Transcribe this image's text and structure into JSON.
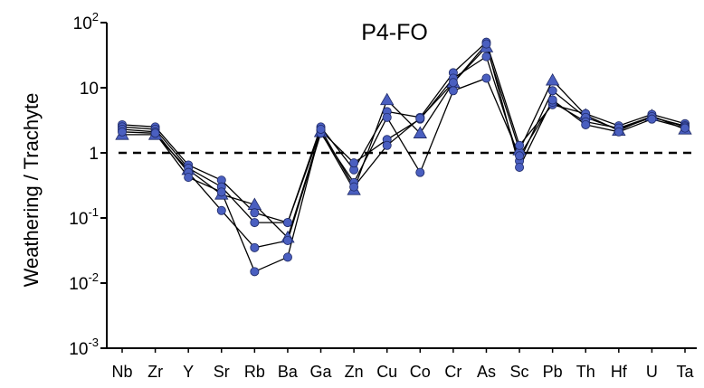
{
  "chart_data": {
    "type": "line",
    "title": "P4-FO",
    "ylabel": "Weathering / Trachyte",
    "xlabel": "",
    "yscale": "log",
    "ylim": [
      0.001,
      100
    ],
    "yticks": [
      {
        "value": 100,
        "base": "10",
        "exp": "2"
      },
      {
        "value": 10,
        "base": "10",
        "exp": ""
      },
      {
        "value": 1,
        "base": "1",
        "exp": ""
      },
      {
        "value": 0.1,
        "base": "10",
        "exp": "-1"
      },
      {
        "value": 0.01,
        "base": "10",
        "exp": "-2"
      },
      {
        "value": 0.001,
        "base": "10",
        "exp": "-3"
      }
    ],
    "reference_line": {
      "value": 1,
      "style": "dashed"
    },
    "grid": false,
    "legend": "none",
    "categories": [
      "Nb",
      "Zr",
      "Y",
      "Sr",
      "Rb",
      "Ba",
      "Ga",
      "Zn",
      "Cu",
      "Co",
      "Cr",
      "As",
      "Sc",
      "Pb",
      "Th",
      "Hf",
      "U",
      "Ta"
    ],
    "series": [
      {
        "marker": "triangle",
        "values": [
          1.9,
          1.9,
          0.55,
          0.23,
          0.16,
          0.05,
          2.1,
          0.27,
          6.5,
          2.0,
          12,
          42,
          1.1,
          13,
          3.8,
          2.2,
          3.7,
          2.3
        ]
      },
      {
        "marker": "circle",
        "values": [
          2.7,
          2.5,
          0.65,
          0.38,
          0.12,
          0.085,
          2.5,
          0.55,
          4.3,
          3.5,
          17,
          50,
          1.3,
          5.5,
          4.0,
          2.6,
          3.9,
          2.8
        ]
      },
      {
        "marker": "circle",
        "values": [
          2.5,
          2.3,
          0.58,
          0.3,
          0.085,
          0.085,
          2.2,
          0.7,
          1.6,
          3.3,
          14,
          30,
          0.75,
          9,
          3.5,
          2.3,
          3.5,
          2.6
        ]
      },
      {
        "marker": "circle",
        "values": [
          2.3,
          2.1,
          0.5,
          0.13,
          0.035,
          0.045,
          2.0,
          0.35,
          3.5,
          0.5,
          9,
          14,
          0.9,
          6,
          3.0,
          2.4,
          3.6,
          2.5
        ]
      },
      {
        "marker": "circle",
        "values": [
          2.1,
          2.0,
          0.42,
          0.25,
          0.015,
          0.025,
          2.3,
          0.3,
          1.3,
          3.4,
          12,
          47,
          0.6,
          6.5,
          2.7,
          2.1,
          3.3,
          2.4
        ]
      }
    ],
    "colors": {
      "marker_fill": "#4a5fc0",
      "marker_stroke": "#1f2a66",
      "line": "#000000"
    }
  }
}
